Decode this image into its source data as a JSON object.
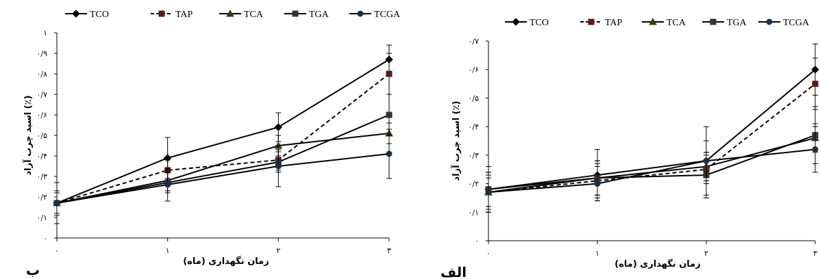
{
  "chart_data": [
    {
      "type": "line",
      "panel_label": "ب",
      "xlabel": "زمان نگهداری (ماه)",
      "ylabel": "اسید چرب آزاد (٪)",
      "x": [
        0,
        1,
        2,
        3
      ],
      "x_tick_labels": [
        "۰",
        "۱",
        "۲",
        "۳"
      ],
      "ylim": [
        0,
        1
      ],
      "y_ticks": [
        0,
        0.1,
        0.2,
        0.3,
        0.4,
        0.5,
        0.6,
        0.7,
        0.8,
        0.9,
        1
      ],
      "y_tick_labels": [
        "۰",
        "۰/۱",
        "۰/۲",
        "۰/۳",
        "۰/۴",
        "۰/۵",
        "۰/۶",
        "۰/۷",
        "۰/۸",
        "۰/۹",
        "۱"
      ],
      "legend_position": "top",
      "series": [
        {
          "name": "TCO",
          "values": [
            0.17,
            0.39,
            0.54,
            0.87
          ],
          "errors": [
            0.1,
            0.1,
            0.07,
            0.07
          ],
          "marker": "diamond",
          "dash": "solid",
          "color": "#000000"
        },
        {
          "name": "TAP",
          "values": [
            0.17,
            0.33,
            0.38,
            0.8
          ],
          "errors": [
            0.05,
            0.05,
            0.05,
            0.1
          ],
          "marker": "square",
          "dash": "dashed",
          "color": "#5a1a1a"
        },
        {
          "name": "TCA",
          "values": [
            0.17,
            0.28,
            0.45,
            0.51
          ],
          "errors": [
            0.05,
            0.05,
            0.05,
            0.05
          ],
          "marker": "triangle",
          "dash": "solid",
          "color": "#3a3a1a"
        },
        {
          "name": "TGA",
          "values": [
            0.17,
            0.27,
            0.37,
            0.6
          ],
          "errors": [
            0.05,
            0.05,
            0.05,
            0.1
          ],
          "marker": "square",
          "dash": "solid",
          "color": "#333333"
        },
        {
          "name": "TCGA",
          "values": [
            0.17,
            0.26,
            0.35,
            0.41
          ],
          "errors": [
            0.06,
            0.08,
            0.1,
            0.12
          ],
          "marker": "circle",
          "dash": "solid",
          "color": "#1a3040"
        }
      ]
    },
    {
      "type": "line",
      "panel_label": "الف",
      "xlabel": "زمان نگهداری (ماه)",
      "ylabel": "اسید چرب آزاد (٪)",
      "x": [
        0,
        1,
        2,
        3
      ],
      "x_tick_labels": [
        "۰",
        "۱",
        "۲",
        "۳"
      ],
      "ylim": [
        0,
        0.7
      ],
      "y_ticks": [
        0,
        0.1,
        0.2,
        0.3,
        0.4,
        0.5,
        0.6,
        0.7
      ],
      "y_tick_labels": [
        "۰",
        "۰/۱",
        "۰/۲",
        "۰/۳",
        "۰/۴",
        "۰/۵",
        "۰/۶",
        "۰/۷"
      ],
      "legend_position": "top",
      "series": [
        {
          "name": "TCO",
          "values": [
            0.18,
            0.23,
            0.28,
            0.6
          ],
          "errors": [
            0.08,
            0.09,
            0.12,
            0.09
          ],
          "marker": "diamond",
          "dash": "solid",
          "color": "#000000"
        },
        {
          "name": "TAP",
          "values": [
            0.17,
            0.21,
            0.25,
            0.55
          ],
          "errors": [
            0.06,
            0.06,
            0.05,
            0.09
          ],
          "marker": "square",
          "dash": "dashed",
          "color": "#5a1a1a"
        },
        {
          "name": "TCA",
          "values": [
            0.17,
            0.22,
            0.26,
            0.36
          ],
          "errors": [
            0.05,
            0.06,
            0.05,
            0.05
          ],
          "marker": "triangle",
          "dash": "solid",
          "color": "#3a3a1a"
        },
        {
          "name": "TGA",
          "values": [
            0.18,
            0.22,
            0.23,
            0.37
          ],
          "errors": [
            0.06,
            0.06,
            0.08,
            0.1
          ],
          "marker": "square",
          "dash": "solid",
          "color": "#333333"
        },
        {
          "name": "TCGA",
          "values": [
            0.17,
            0.2,
            0.28,
            0.32
          ],
          "errors": [
            0.07,
            0.06,
            0.07,
            0.08
          ],
          "marker": "circle",
          "dash": "solid",
          "color": "#1a3040"
        }
      ]
    }
  ]
}
